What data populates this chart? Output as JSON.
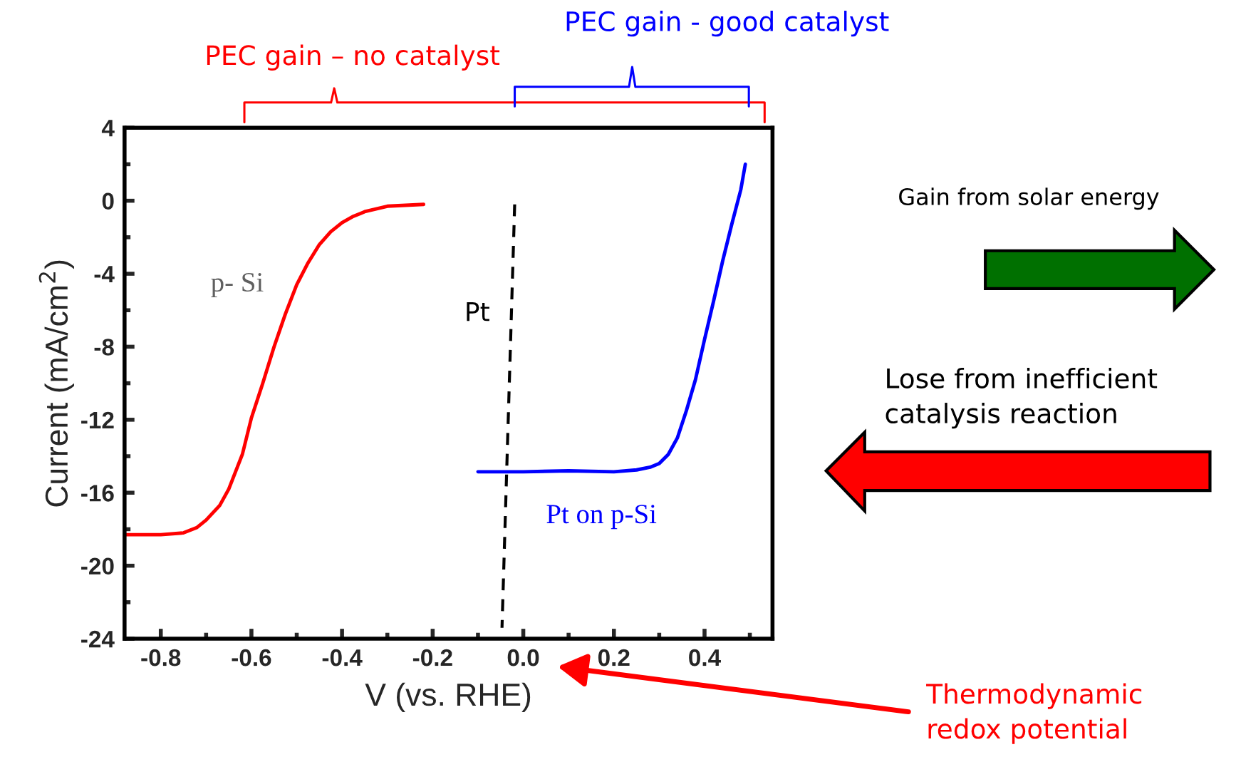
{
  "chart_data": {
    "type": "line",
    "xlabel": "V (vs. RHE)",
    "ylabel": "Current (mA/cm$^{2}$)",
    "xlim": [
      -0.88,
      0.55
    ],
    "ylim": [
      -24,
      4
    ],
    "xticks": [
      -0.8,
      -0.6,
      -0.4,
      -0.2,
      {
        "value": 0.0,
        "label": "0.0"
      },
      0.2,
      0.4
    ],
    "yticks": [
      -24,
      -20,
      -16,
      -12,
      -8,
      -4,
      0,
      4
    ],
    "grid": false,
    "legend": false,
    "marker": "none",
    "series": [
      {
        "name": "p- Si",
        "color": "#ff0000",
        "line_style": "solid",
        "x": [
          -0.88,
          -0.8,
          -0.75,
          -0.72,
          -0.7,
          -0.67,
          -0.65,
          -0.62,
          -0.6,
          -0.575,
          -0.55,
          -0.525,
          -0.5,
          -0.475,
          -0.45,
          -0.425,
          -0.4,
          -0.375,
          -0.35,
          -0.3,
          -0.22
        ],
        "values": [
          -18.3,
          -18.3,
          -18.2,
          -17.9,
          -17.5,
          -16.7,
          -15.8,
          -13.9,
          -11.9,
          -10.0,
          -8.0,
          -6.2,
          -4.6,
          -3.4,
          -2.4,
          -1.7,
          -1.2,
          -0.85,
          -0.6,
          -0.3,
          -0.2
        ]
      },
      {
        "name": "Pt",
        "color": "#000000",
        "line_style": "dashed",
        "x": [
          -0.019,
          -0.047
        ],
        "values": [
          -0.2,
          -23.4
        ]
      },
      {
        "name": "Pt on p-Si",
        "color": "#0000ff",
        "line_style": "solid",
        "x": [
          -0.1,
          0.0,
          0.1,
          0.2,
          0.25,
          0.28,
          0.3,
          0.32,
          0.34,
          0.36,
          0.38,
          0.4,
          0.42,
          0.44,
          0.46,
          0.48,
          0.49
        ],
        "values": [
          -14.85,
          -14.85,
          -14.8,
          -14.85,
          -14.75,
          -14.6,
          -14.4,
          -13.9,
          -13.0,
          -11.5,
          -9.8,
          -7.6,
          -5.5,
          -3.3,
          -1.3,
          0.6,
          2.0
        ]
      }
    ],
    "annotations": [
      "PEC gain – no catalyst",
      "PEC gain - good catalyst",
      "Gain from solar energy",
      "Lose from inefficient\ncatalysis reaction",
      "Thermodynamic\nredox potential"
    ]
  }
}
